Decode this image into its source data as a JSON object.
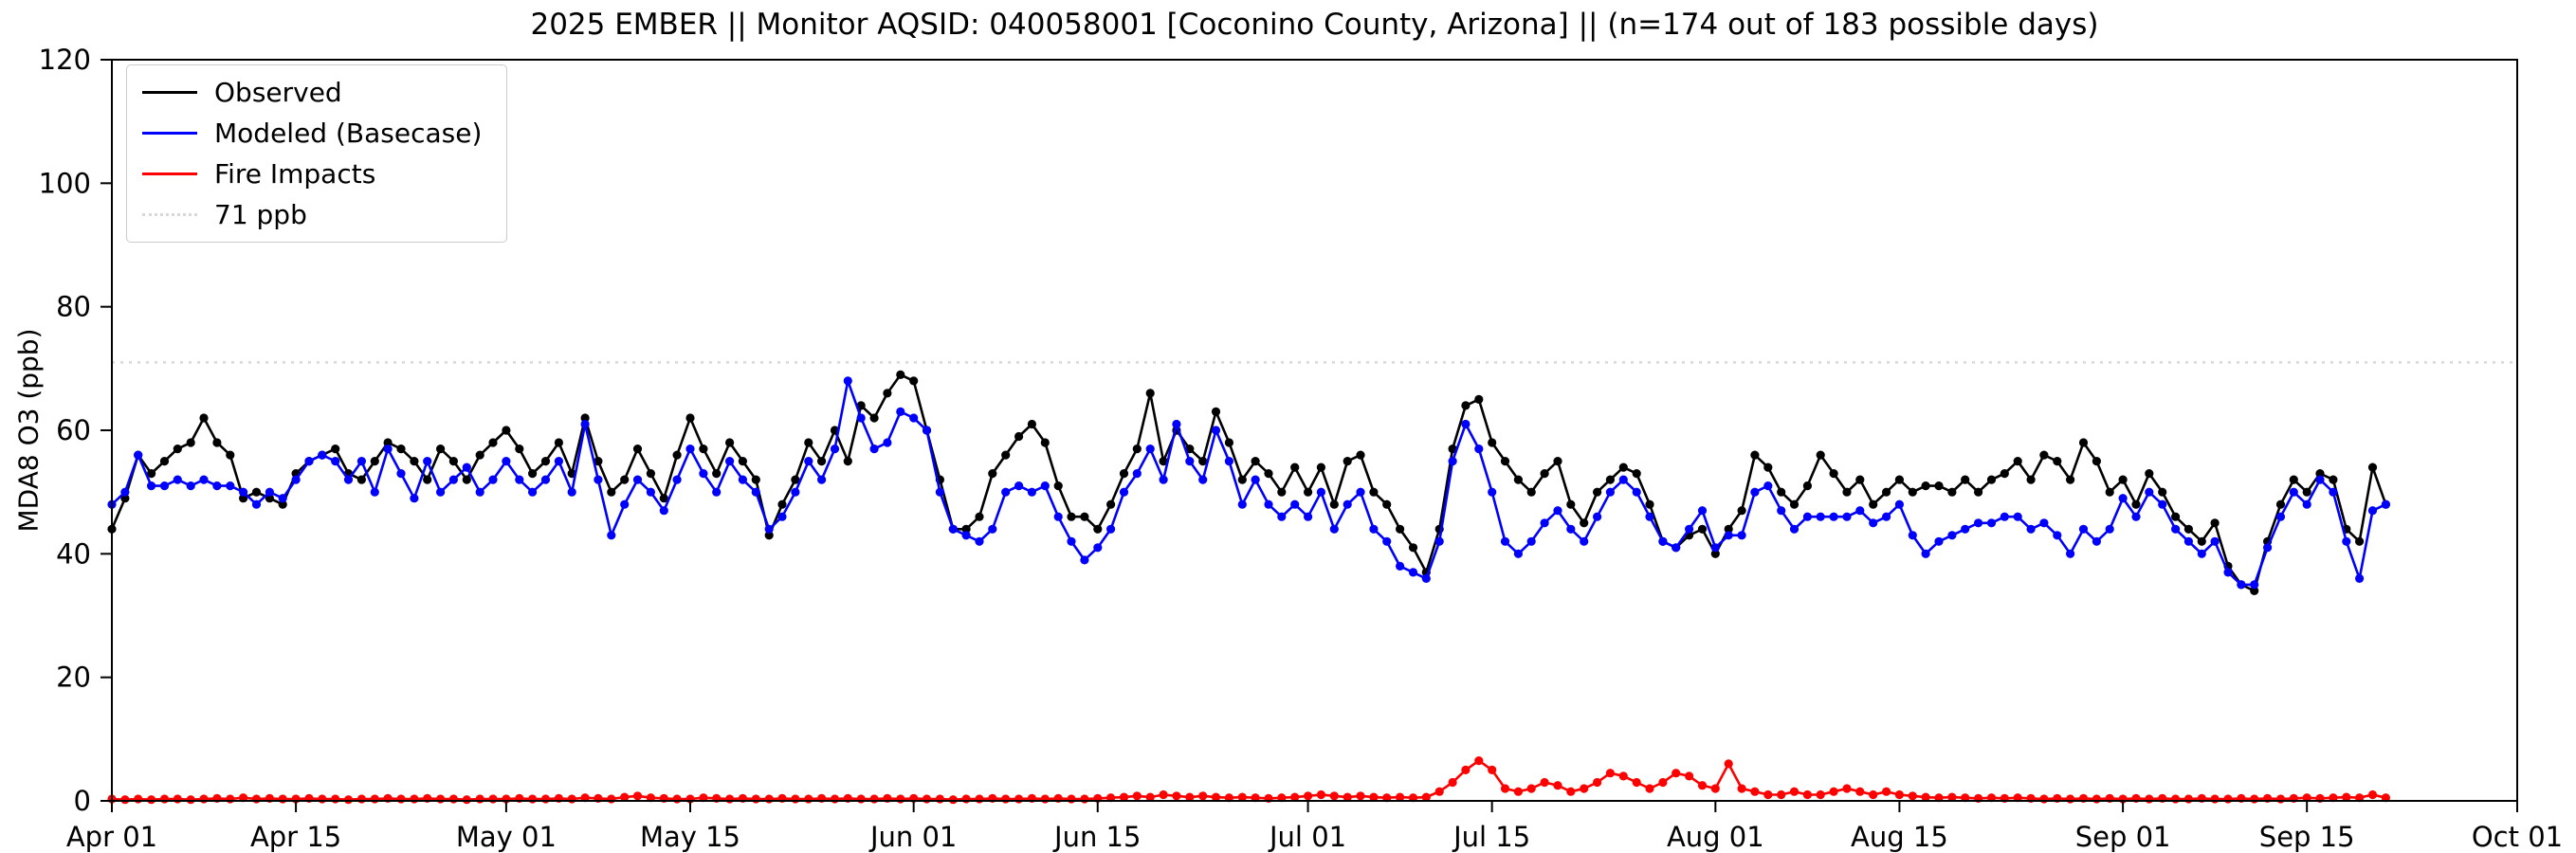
{
  "title": "2025 EMBER || Monitor AQSID: 040058001 [Coconino County, Arizona] || (n=174 out of 183 possible days)",
  "chart_data": {
    "type": "line",
    "title": "2025 EMBER || Monitor AQSID: 040058001 [Coconino County, Arizona] || (n=174 out of 183 possible days)",
    "xlabel": "",
    "ylabel": "MDA8 O3 (ppb)",
    "ylim": [
      0,
      120
    ],
    "y_ticks": [
      0,
      20,
      40,
      60,
      80,
      100,
      120
    ],
    "xlim_days": [
      0,
      183
    ],
    "x_ticks": [
      {
        "label": "Apr 01",
        "day": 0
      },
      {
        "label": "Apr 15",
        "day": 14
      },
      {
        "label": "May 01",
        "day": 30
      },
      {
        "label": "May 15",
        "day": 44
      },
      {
        "label": "Jun 01",
        "day": 61
      },
      {
        "label": "Jun 15",
        "day": 75
      },
      {
        "label": "Jul 01",
        "day": 91
      },
      {
        "label": "Jul 15",
        "day": 105
      },
      {
        "label": "Aug 01",
        "day": 122
      },
      {
        "label": "Aug 15",
        "day": 136
      },
      {
        "label": "Sep 01",
        "day": 153
      },
      {
        "label": "Sep 15",
        "day": 167
      },
      {
        "label": "Oct 01",
        "day": 183
      }
    ],
    "x_start": "Apr 01",
    "x_end": "Sep 21",
    "cadence": "daily",
    "grid": false,
    "legend_position": "upper-left",
    "threshold": {
      "label": "71 ppb",
      "value": 71,
      "color": "#d8d8d8",
      "style": "dotted"
    },
    "series": [
      {
        "name": "Observed",
        "color": "#000000",
        "values": [
          44,
          49,
          56,
          53,
          55,
          57,
          58,
          62,
          58,
          56,
          49,
          50,
          49,
          48,
          53,
          55,
          56,
          57,
          53,
          52,
          55,
          58,
          57,
          55,
          52,
          57,
          55,
          52,
          56,
          58,
          60,
          57,
          53,
          55,
          58,
          53,
          62,
          55,
          50,
          52,
          57,
          53,
          49,
          56,
          62,
          57,
          53,
          58,
          55,
          52,
          43,
          48,
          52,
          58,
          55,
          60,
          55,
          64,
          62,
          66,
          69,
          68,
          60,
          52,
          44,
          44,
          46,
          53,
          56,
          59,
          61,
          58,
          51,
          46,
          46,
          44,
          48,
          53,
          57,
          66,
          55,
          60,
          57,
          55,
          63,
          58,
          52,
          55,
          53,
          50,
          54,
          50,
          54,
          48,
          55,
          56,
          50,
          48,
          44,
          41,
          37,
          44,
          57,
          64,
          65,
          58,
          55,
          52,
          50,
          53,
          55,
          48,
          45,
          50,
          52,
          54,
          53,
          48,
          42,
          41,
          43,
          44,
          40,
          44,
          47,
          56,
          54,
          50,
          48,
          51,
          56,
          53,
          50,
          52,
          48,
          50,
          52,
          50,
          51,
          51,
          50,
          52,
          50,
          52,
          53,
          55,
          52,
          56,
          55,
          52,
          58,
          55,
          50,
          52,
          48,
          53,
          50,
          46,
          44,
          42,
          45,
          38,
          35,
          34,
          42,
          48,
          52,
          50,
          53,
          52,
          44,
          42,
          54,
          48
        ]
      },
      {
        "name": "Modeled (Basecase)",
        "color": "#0000ff",
        "values": [
          48,
          50,
          56,
          51,
          51,
          52,
          51,
          52,
          51,
          51,
          50,
          48,
          50,
          49,
          52,
          55,
          56,
          55,
          52,
          55,
          50,
          57,
          53,
          49,
          55,
          50,
          52,
          54,
          50,
          52,
          55,
          52,
          50,
          52,
          55,
          50,
          61,
          52,
          43,
          48,
          52,
          50,
          47,
          52,
          57,
          53,
          50,
          55,
          52,
          50,
          44,
          46,
          50,
          55,
          52,
          57,
          68,
          62,
          57,
          58,
          63,
          62,
          60,
          50,
          44,
          43,
          42,
          44,
          50,
          51,
          50,
          51,
          46,
          42,
          39,
          41,
          44,
          50,
          53,
          57,
          52,
          61,
          55,
          52,
          60,
          55,
          48,
          52,
          48,
          46,
          48,
          46,
          50,
          44,
          48,
          50,
          44,
          42,
          38,
          37,
          36,
          42,
          55,
          61,
          57,
          50,
          42,
          40,
          42,
          45,
          47,
          44,
          42,
          46,
          50,
          52,
          50,
          46,
          42,
          41,
          44,
          47,
          41,
          43,
          43,
          50,
          51,
          47,
          44,
          46,
          46,
          46,
          46,
          47,
          45,
          46,
          48,
          43,
          40,
          42,
          43,
          44,
          45,
          45,
          46,
          46,
          44,
          45,
          43,
          40,
          44,
          42,
          44,
          49,
          46,
          50,
          48,
          44,
          42,
          40,
          42,
          37,
          35,
          35,
          41,
          46,
          50,
          48,
          52,
          50,
          42,
          36,
          47,
          48
        ]
      },
      {
        "name": "Fire Impacts",
        "color": "#ff0000",
        "values": [
          0.3,
          0.2,
          0.3,
          0.2,
          0.3,
          0.3,
          0.2,
          0.3,
          0.4,
          0.3,
          0.5,
          0.3,
          0.4,
          0.3,
          0.3,
          0.4,
          0.3,
          0.3,
          0.2,
          0.3,
          0.3,
          0.4,
          0.3,
          0.3,
          0.4,
          0.3,
          0.3,
          0.2,
          0.3,
          0.3,
          0.3,
          0.4,
          0.3,
          0.3,
          0.4,
          0.3,
          0.5,
          0.4,
          0.3,
          0.6,
          0.8,
          0.5,
          0.4,
          0.3,
          0.3,
          0.5,
          0.4,
          0.3,
          0.4,
          0.3,
          0.3,
          0.4,
          0.3,
          0.3,
          0.4,
          0.3,
          0.4,
          0.3,
          0.3,
          0.4,
          0.3,
          0.4,
          0.3,
          0.3,
          0.2,
          0.3,
          0.3,
          0.4,
          0.3,
          0.3,
          0.4,
          0.3,
          0.4,
          0.3,
          0.3,
          0.4,
          0.5,
          0.6,
          0.8,
          0.6,
          1.0,
          0.8,
          0.6,
          0.8,
          0.6,
          0.5,
          0.6,
          0.5,
          0.4,
          0.5,
          0.6,
          0.8,
          1.0,
          0.8,
          0.6,
          0.8,
          0.6,
          0.5,
          0.6,
          0.5,
          0.6,
          1.5,
          3.0,
          5.0,
          6.5,
          5.0,
          2.0,
          1.5,
          2.0,
          3.0,
          2.5,
          1.5,
          2.0,
          3.0,
          4.5,
          4.0,
          3.0,
          2.0,
          3.0,
          4.5,
          4.0,
          2.5,
          2.0,
          6.0,
          2.0,
          1.5,
          1.0,
          1.0,
          1.5,
          1.0,
          1.0,
          1.5,
          2.0,
          1.5,
          1.0,
          1.5,
          1.0,
          0.8,
          0.6,
          0.5,
          0.6,
          0.5,
          0.4,
          0.5,
          0.4,
          0.5,
          0.4,
          0.3,
          0.4,
          0.3,
          0.4,
          0.3,
          0.4,
          0.3,
          0.4,
          0.3,
          0.4,
          0.3,
          0.3,
          0.4,
          0.3,
          0.3,
          0.4,
          0.3,
          0.4,
          0.3,
          0.4,
          0.5,
          0.4,
          0.5,
          0.6,
          0.5,
          1.0,
          0.5
        ]
      }
    ]
  },
  "legend": {
    "observed_label": "Observed",
    "modeled_label": "Modeled (Basecase)",
    "fire_label": "Fire Impacts",
    "threshold_label": "71 ppb"
  }
}
